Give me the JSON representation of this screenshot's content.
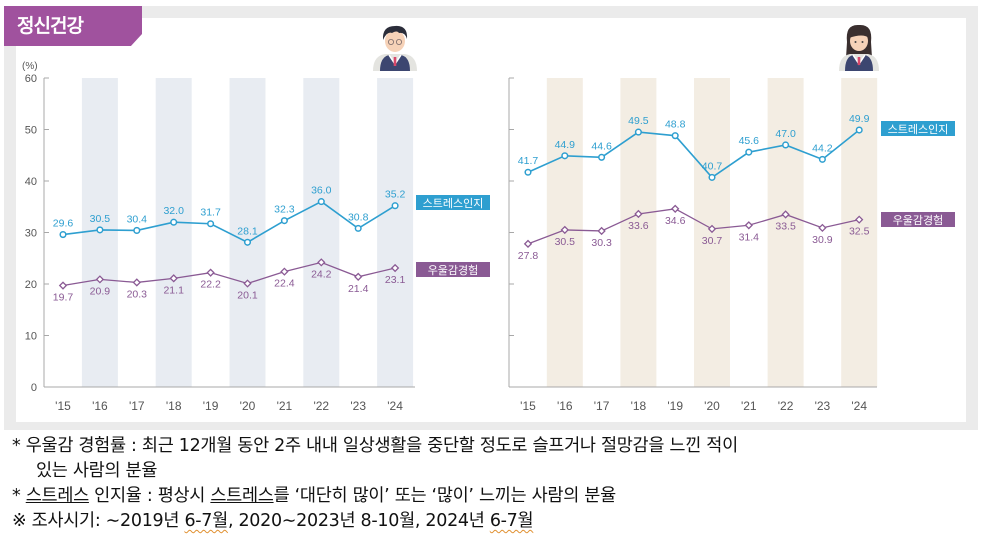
{
  "header": {
    "title": "정신건강"
  },
  "icons": {
    "left": "boy-student-icon",
    "right": "girl-student-icon"
  },
  "colors": {
    "stress": "#2e9fd0",
    "depression": "#8a5a94",
    "tab": "#a0529e",
    "band_left": "#e8ecf2",
    "band_right": "#f3ede3"
  },
  "chart_data": [
    {
      "type": "line",
      "panel": "male",
      "ylabel": "(%)",
      "ylim": [
        0,
        60
      ],
      "yticks": [
        0,
        10,
        20,
        30,
        40,
        50,
        60
      ],
      "categories": [
        "'15",
        "'16",
        "'17",
        "'18",
        "'19",
        "'20",
        "'21",
        "'22",
        "'23",
        "'24"
      ],
      "series": [
        {
          "name": "스트레스인지",
          "values": [
            29.6,
            30.5,
            30.4,
            32.0,
            31.7,
            28.1,
            32.3,
            36.0,
            30.8,
            35.2
          ]
        },
        {
          "name": "우울감경험",
          "values": [
            19.7,
            20.9,
            20.3,
            21.1,
            22.2,
            20.1,
            22.4,
            24.2,
            21.4,
            23.1
          ]
        }
      ],
      "legend": "right"
    },
    {
      "type": "line",
      "panel": "female",
      "ylim": [
        0,
        60
      ],
      "categories": [
        "'15",
        "'16",
        "'17",
        "'18",
        "'19",
        "'20",
        "'21",
        "'22",
        "'23",
        "'24"
      ],
      "series": [
        {
          "name": "스트레스인지",
          "values": [
            41.7,
            44.9,
            44.6,
            49.5,
            48.8,
            40.7,
            45.6,
            47.0,
            44.2,
            49.9
          ]
        },
        {
          "name": "우울감경험",
          "values": [
            27.8,
            30.5,
            30.3,
            33.6,
            34.6,
            30.7,
            31.4,
            33.5,
            30.9,
            32.5
          ]
        }
      ],
      "legend": "right"
    }
  ],
  "notes": {
    "line1a": "* 우울감 경험률 : 최근 12개월 동안 2주 내내 일상생활을 중단할 정도로 슬프거나 절망감을 느낀 적이",
    "line1b": "있는 사람의 분율",
    "line2_prefix": "* ",
    "line2_term": "스트레스",
    "line2_rest": " 인지율 : 평상시 ",
    "line2_term2": "스트레스",
    "line2_end": "를 ‘대단히 많이’ 또는 ‘많이’ 느끼는 사람의 분율",
    "line3_a": "※ 조사시기: ∼2019년 ",
    "line3_b": "6-7월",
    "line3_c": ", 2020∼2023년 8-10월, 2024년 ",
    "line3_d": "6-7월"
  }
}
